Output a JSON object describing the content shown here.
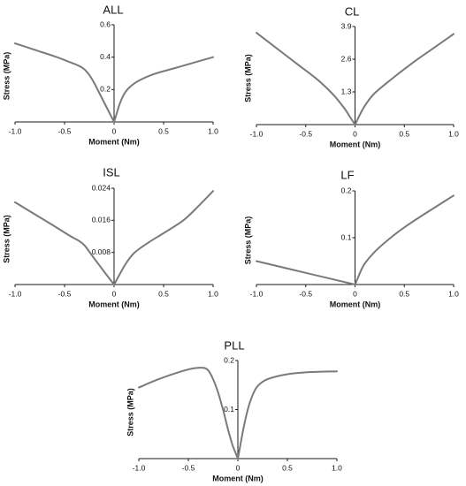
{
  "chart_data": [
    {
      "type": "line",
      "title": "ALL",
      "xlabel": "Moment (Nm)",
      "ylabel": "Stress (MPa)",
      "xlim": [
        -1.0,
        1.0
      ],
      "ylim": [
        0,
        0.6
      ],
      "x_ticks": [
        "-1.0",
        "-0.5",
        "0",
        "0.5",
        "1.0"
      ],
      "y_ticks": [
        "0.2",
        "0.4",
        "0.6"
      ],
      "grid": false,
      "series": [
        {
          "x": [
            -1.0,
            -0.8,
            -0.6,
            -0.45,
            -0.35,
            -0.3,
            -0.25,
            -0.2,
            -0.15,
            -0.1,
            -0.05,
            0,
            0.05,
            0.1,
            0.15,
            0.25,
            0.4,
            0.6,
            0.8,
            1.0
          ],
          "y": [
            0.485,
            0.445,
            0.405,
            0.37,
            0.345,
            0.325,
            0.29,
            0.24,
            0.18,
            0.12,
            0.06,
            0.0,
            0.1,
            0.17,
            0.21,
            0.255,
            0.295,
            0.33,
            0.365,
            0.4
          ]
        }
      ]
    },
    {
      "type": "line",
      "title": "CL",
      "xlabel": "Moment (Nm)",
      "ylabel": "Stress (MPa)",
      "xlim": [
        -1.0,
        1.0
      ],
      "ylim": [
        0,
        3.9
      ],
      "x_ticks": [
        "-1.0",
        "-0.5",
        "0",
        "0.5",
        "1.0"
      ],
      "y_ticks": [
        "1.3",
        "2.6",
        "3.9"
      ],
      "grid": false,
      "series": [
        {
          "x": [
            -1.0,
            -0.8,
            -0.6,
            -0.4,
            -0.3,
            -0.2,
            -0.1,
            -0.05,
            0,
            0.05,
            0.1,
            0.2,
            0.4,
            0.6,
            0.8,
            1.0
          ],
          "y": [
            3.65,
            3.05,
            2.45,
            1.85,
            1.5,
            1.1,
            0.6,
            0.3,
            0.0,
            0.4,
            0.75,
            1.25,
            1.9,
            2.5,
            3.05,
            3.6
          ]
        }
      ]
    },
    {
      "type": "line",
      "title": "ISL",
      "xlabel": "Moment (Nm)",
      "ylabel": "Stress (MPa)",
      "xlim": [
        -1.0,
        1.0
      ],
      "ylim": [
        0,
        0.024
      ],
      "x_ticks": [
        "-1.0",
        "-0.5",
        "0",
        "0.5",
        "1.0"
      ],
      "y_ticks": [
        "0.008",
        "0.016",
        "0.024"
      ],
      "grid": false,
      "series": [
        {
          "x": [
            -1.0,
            -0.8,
            -0.6,
            -0.45,
            -0.35,
            -0.3,
            -0.25,
            -0.2,
            -0.1,
            0,
            0.1,
            0.2,
            0.35,
            0.5,
            0.7,
            0.85,
            1.0
          ],
          "y": [
            0.0205,
            0.0175,
            0.0145,
            0.0122,
            0.0108,
            0.0098,
            0.0082,
            0.0065,
            0.0032,
            0.0,
            0.0045,
            0.0078,
            0.0105,
            0.0128,
            0.016,
            0.0195,
            0.0233
          ]
        }
      ]
    },
    {
      "type": "line",
      "title": "LF",
      "xlabel": "Moment (Nm)",
      "ylabel": "Stress (MPa)",
      "xlim": [
        -1.0,
        1.0
      ],
      "ylim": [
        0,
        0.2
      ],
      "x_ticks": [
        "-1.0",
        "-0.5",
        "0",
        "0.5",
        "1.0"
      ],
      "y_ticks": [
        "0.1",
        "0.2"
      ],
      "grid": false,
      "series": [
        {
          "x": [
            -1.0,
            -0.5,
            0,
            0.05,
            0.1,
            0.2,
            0.35,
            0.5,
            0.7,
            0.85,
            1.0
          ],
          "y": [
            0.05,
            0.025,
            0.0,
            0.025,
            0.045,
            0.07,
            0.098,
            0.122,
            0.15,
            0.17,
            0.19
          ]
        }
      ]
    },
    {
      "type": "line",
      "title": "PLL",
      "xlabel": "Moment (Nm)",
      "ylabel": "Stress (MPa)",
      "xlim": [
        -1.0,
        1.0
      ],
      "ylim": [
        0,
        0.2
      ],
      "x_ticks": [
        "-1.0",
        "-0.5",
        "0",
        "0.5",
        "1.0"
      ],
      "y_ticks": [
        "0.1",
        "0.2"
      ],
      "grid": false,
      "series": [
        {
          "x": [
            -1.0,
            -0.8,
            -0.6,
            -0.45,
            -0.35,
            -0.3,
            -0.25,
            -0.2,
            -0.15,
            -0.1,
            -0.05,
            0,
            0.05,
            0.1,
            0.15,
            0.2,
            0.3,
            0.5,
            0.7,
            1.0
          ],
          "y": [
            0.145,
            0.162,
            0.176,
            0.184,
            0.185,
            0.18,
            0.162,
            0.135,
            0.1,
            0.06,
            0.025,
            0.0,
            0.055,
            0.1,
            0.13,
            0.148,
            0.162,
            0.172,
            0.176,
            0.178
          ]
        }
      ]
    }
  ]
}
